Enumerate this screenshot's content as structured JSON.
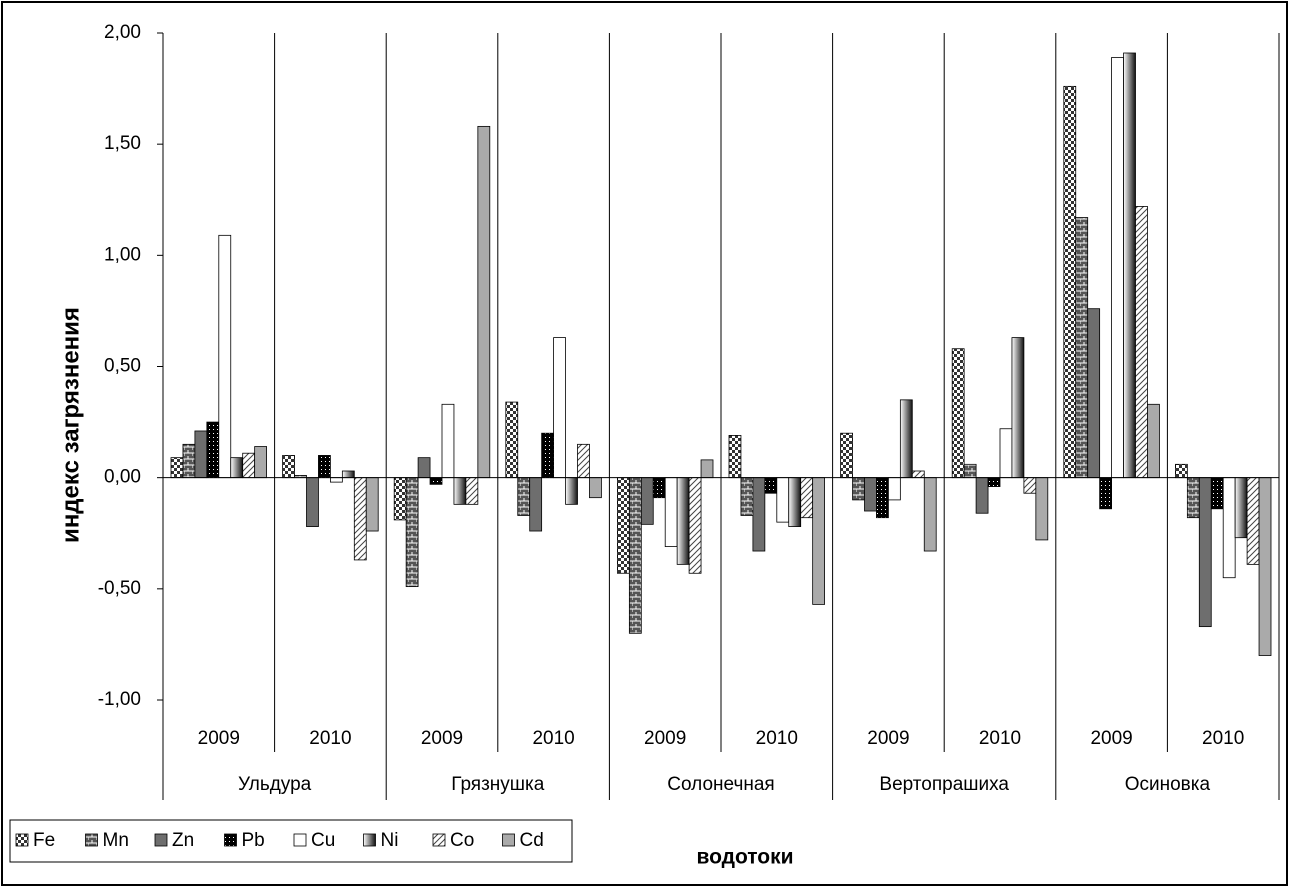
{
  "chart_data": {
    "type": "bar",
    "y_label": "индекс загрязнения",
    "x_label": "водотоки",
    "categories": [
      "2009",
      "2010",
      "2009",
      "2010",
      "2009",
      "2010",
      "2009",
      "2010",
      "2009",
      "2010"
    ],
    "groups": [
      "Ульдура",
      "Грязнушка",
      "Солонечная",
      "Вертопрашиха",
      "Осиновка"
    ],
    "ylim": [
      -1,
      2
    ],
    "yticks": [
      {
        "value": -1,
        "label": "-1,00"
      },
      {
        "value": -0.5,
        "label": "-0,50"
      },
      {
        "value": 0,
        "label": "0,00"
      },
      {
        "value": 0.5,
        "label": "0,50"
      },
      {
        "value": 1,
        "label": "1,00"
      },
      {
        "value": 1.5,
        "label": "1,50"
      },
      {
        "value": 2,
        "label": "2,00"
      }
    ],
    "series": [
      {
        "name": "Fe",
        "color": "#888888",
        "pattern": "checker",
        "values": [
          0.09,
          0.1,
          -0.19,
          0.34,
          -0.43,
          0.19,
          0.2,
          0.58,
          1.76,
          0.06
        ]
      },
      {
        "name": "Mn",
        "color": "#777777",
        "pattern": "bricks",
        "values": [
          0.15,
          0.01,
          -0.49,
          -0.17,
          -0.7,
          -0.17,
          -0.1,
          0.06,
          1.17,
          -0.18
        ]
      },
      {
        "name": "Zn",
        "color": "#6e6e6e",
        "pattern": "solid",
        "values": [
          0.21,
          -0.22,
          0.09,
          -0.24,
          -0.21,
          -0.33,
          -0.15,
          -0.16,
          0.76,
          -0.67
        ]
      },
      {
        "name": "Pb",
        "color": "#000000",
        "pattern": "dots",
        "values": [
          0.25,
          0.1,
          -0.03,
          0.2,
          -0.09,
          -0.07,
          -0.18,
          -0.04,
          -0.14,
          -0.14
        ]
      },
      {
        "name": "Cu",
        "color": "#ffffff",
        "pattern": "solid",
        "values": [
          1.09,
          -0.02,
          0.33,
          0.63,
          -0.31,
          -0.2,
          -0.1,
          0.22,
          1.89,
          -0.45
        ]
      },
      {
        "name": "Ni",
        "color": "#444444",
        "pattern": "gradient",
        "values": [
          0.09,
          0.03,
          -0.12,
          -0.12,
          -0.39,
          -0.22,
          0.35,
          0.63,
          1.91,
          -0.27
        ]
      },
      {
        "name": "Co",
        "color": "#ffffff",
        "pattern": "hatch",
        "values": [
          0.11,
          -0.37,
          -0.12,
          0.15,
          -0.43,
          -0.18,
          0.03,
          -0.07,
          1.22,
          -0.39
        ]
      },
      {
        "name": "Cd",
        "color": "#aaaaaa",
        "pattern": "solid",
        "values": [
          0.14,
          -0.24,
          1.58,
          -0.09,
          0.08,
          -0.57,
          -0.33,
          -0.28,
          0.33,
          -0.8
        ]
      }
    ]
  }
}
